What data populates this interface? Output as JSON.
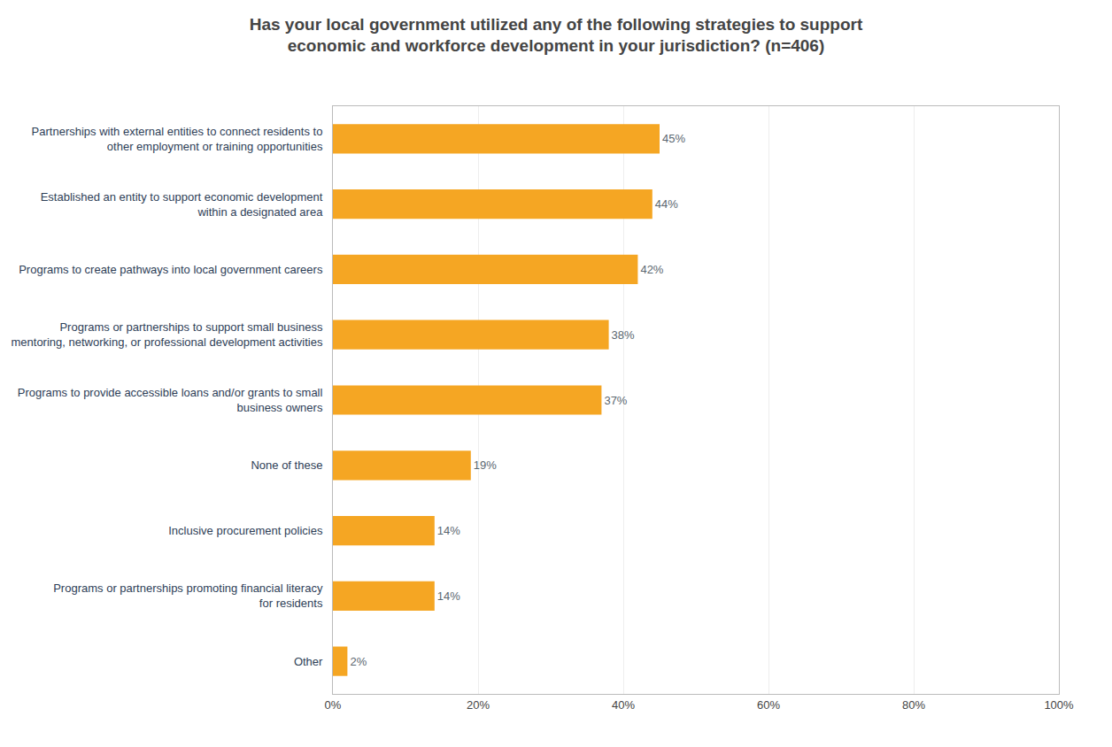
{
  "chart_data": {
    "type": "bar",
    "orientation": "horizontal",
    "title": "Has your local government utilized any of the following strategies to support\neconomic and workforce development in your jurisdiction? (n=406)",
    "categories": [
      "Partnerships with external entities to connect residents to\nother employment or training opportunities",
      "Established an entity to support economic development\nwithin a designated area",
      "Programs to create pathways into local government careers",
      "Programs or partnerships to support small business\nmentoring, networking, or professional development activities",
      "Programs to provide accessible loans and/or grants to small\nbusiness owners",
      "None of these",
      "Inclusive procurement policies",
      "Programs or partnerships promoting financial literacy\nfor residents",
      "Other"
    ],
    "values": [
      45,
      44,
      42,
      38,
      37,
      19,
      14,
      14,
      2
    ],
    "value_labels": [
      "45%",
      "44%",
      "42%",
      "38%",
      "37%",
      "19%",
      "14%",
      "14%",
      "2%"
    ],
    "data_labels": true,
    "color": "#F5A623",
    "xlim": [
      0,
      100
    ],
    "xticks": [
      {
        "value": 0,
        "label": "0%"
      },
      {
        "value": 20,
        "label": "20%"
      },
      {
        "value": 40,
        "label": "40%"
      },
      {
        "value": 60,
        "label": "60%"
      },
      {
        "value": 80,
        "label": "80%"
      },
      {
        "value": 100,
        "label": "100%"
      }
    ],
    "grid": true
  }
}
